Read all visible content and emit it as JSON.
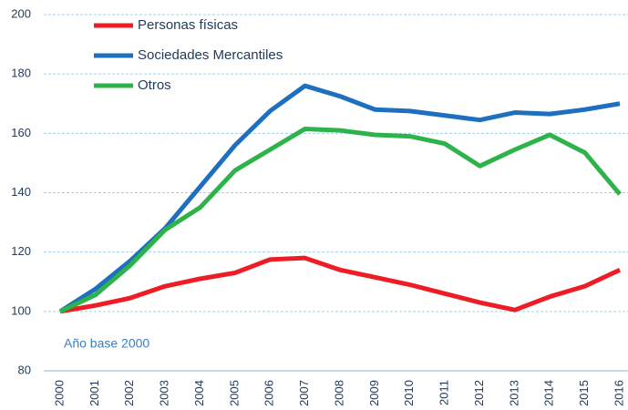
{
  "chart_data": {
    "type": "line",
    "categories": [
      "2000",
      "2001",
      "2002",
      "2003",
      "2004",
      "2005",
      "2006",
      "2007",
      "2008",
      "2009",
      "2010",
      "2011",
      "2012",
      "2013",
      "2014",
      "2015",
      "2016"
    ],
    "series": [
      {
        "name": "Personas físicas",
        "color": "#ee1c25",
        "values": [
          100,
          102,
          104.5,
          108.5,
          111,
          113,
          117.5,
          118,
          114,
          111.5,
          109,
          106,
          103,
          100.5,
          105,
          108.5,
          114
        ]
      },
      {
        "name": "Sociedades Mercantiles",
        "color": "#1f6fbf",
        "values": [
          100,
          107.5,
          117,
          128,
          142,
          156,
          167.5,
          176,
          172.5,
          168,
          167.5,
          166,
          164.5,
          167,
          166.5,
          168,
          170
        ]
      },
      {
        "name": "Otros",
        "color": "#2db34a",
        "values": [
          100,
          105.5,
          115.5,
          127.5,
          135,
          147.5,
          154.5,
          161.5,
          161,
          159.5,
          159,
          156.5,
          149,
          154.5,
          159.5,
          153.5,
          139.5
        ]
      }
    ],
    "annotation": "Año base 2000",
    "ylim": [
      80,
      200
    ],
    "yticks": [
      80,
      100,
      120,
      140,
      160,
      180,
      200
    ],
    "grid": true,
    "legend": "top-left"
  }
}
